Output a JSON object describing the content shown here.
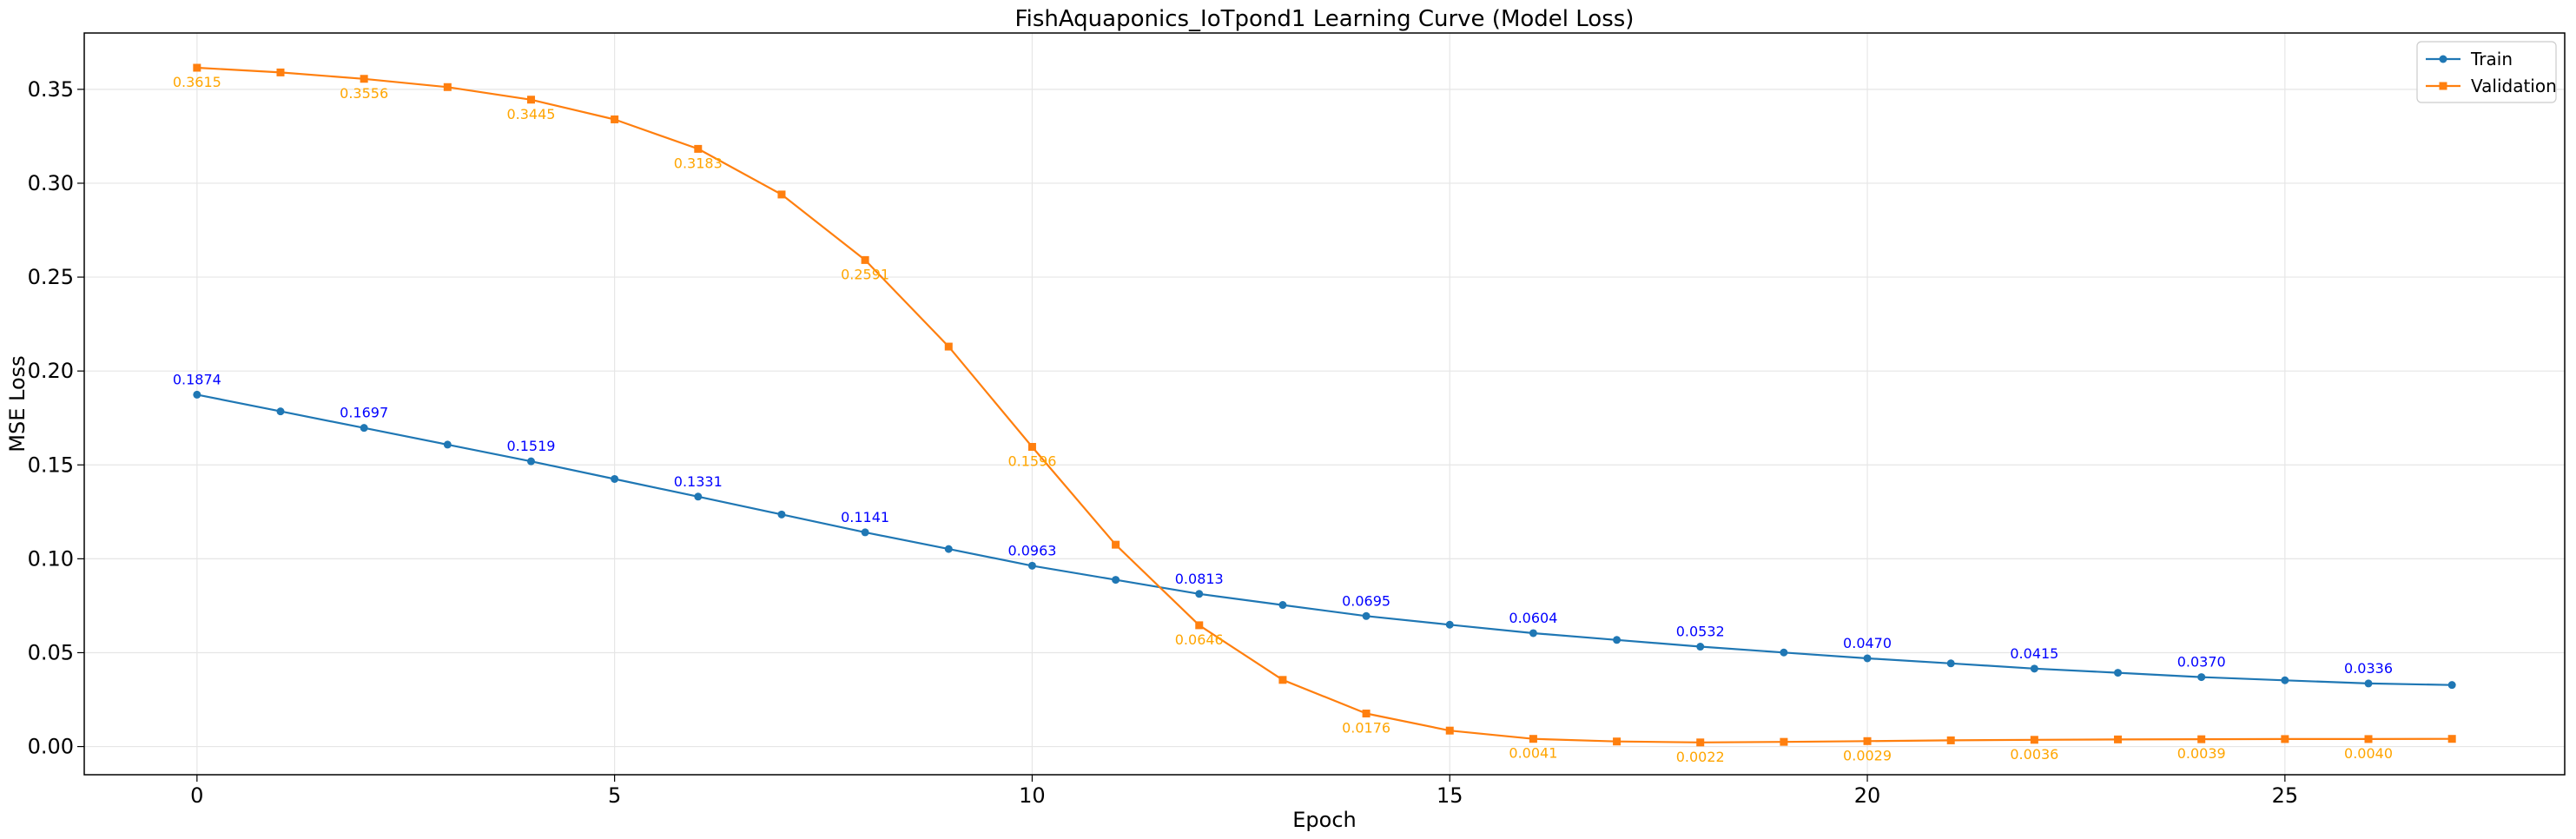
{
  "chart_data": {
    "type": "line",
    "title": "FishAquaponics_IoTpond1 Learning Curve (Model Loss)",
    "xlabel": "Epoch",
    "ylabel": "MSE Loss",
    "xlim": [
      -1.35,
      28.35
    ],
    "ylim": [
      -0.015,
      0.38
    ],
    "xticks": [
      0,
      5,
      10,
      15,
      20,
      25
    ],
    "xtick_labels": [
      "0",
      "5",
      "10",
      "15",
      "20",
      "25"
    ],
    "yticks": [
      0.0,
      0.05,
      0.1,
      0.15,
      0.2,
      0.25,
      0.3,
      0.35
    ],
    "ytick_labels": [
      "0.00",
      "0.05",
      "0.10",
      "0.15",
      "0.20",
      "0.25",
      "0.30",
      "0.35"
    ],
    "grid": true,
    "legend_position": "top-right",
    "x": [
      0,
      1,
      2,
      3,
      4,
      5,
      6,
      7,
      8,
      9,
      10,
      11,
      12,
      13,
      14,
      15,
      16,
      17,
      18,
      19,
      20,
      21,
      22,
      23,
      24,
      25,
      26,
      27
    ],
    "series": [
      {
        "name": "Train",
        "color": "#1f77b4",
        "label_color": "#0000ff",
        "marker": "circle",
        "values": [
          0.1874,
          0.1785,
          0.1697,
          0.1608,
          0.1519,
          0.1425,
          0.1331,
          0.1236,
          0.1141,
          0.1052,
          0.0963,
          0.0888,
          0.0813,
          0.0754,
          0.0695,
          0.0649,
          0.0604,
          0.0568,
          0.0532,
          0.0501,
          0.047,
          0.0443,
          0.0415,
          0.0393,
          0.037,
          0.0353,
          0.0336,
          0.0328
        ],
        "annotations": [
          {
            "x": 0,
            "y": 0.1874,
            "text": "0.1874"
          },
          {
            "x": 2,
            "y": 0.1697,
            "text": "0.1697"
          },
          {
            "x": 4,
            "y": 0.1519,
            "text": "0.1519"
          },
          {
            "x": 6,
            "y": 0.1331,
            "text": "0.1331"
          },
          {
            "x": 8,
            "y": 0.1141,
            "text": "0.1141"
          },
          {
            "x": 10,
            "y": 0.0963,
            "text": "0.0963"
          },
          {
            "x": 12,
            "y": 0.0813,
            "text": "0.0813"
          },
          {
            "x": 14,
            "y": 0.0695,
            "text": "0.0695"
          },
          {
            "x": 16,
            "y": 0.0604,
            "text": "0.0604"
          },
          {
            "x": 18,
            "y": 0.0532,
            "text": "0.0532"
          },
          {
            "x": 20,
            "y": 0.047,
            "text": "0.0470"
          },
          {
            "x": 22,
            "y": 0.0415,
            "text": "0.0415"
          },
          {
            "x": 24,
            "y": 0.037,
            "text": "0.0370"
          },
          {
            "x": 26,
            "y": 0.0336,
            "text": "0.0336"
          }
        ]
      },
      {
        "name": "Validation",
        "color": "#ff7f0e",
        "label_color": "#ffa500",
        "marker": "square",
        "values": [
          0.3615,
          0.359,
          0.3556,
          0.3512,
          0.3445,
          0.334,
          0.3183,
          0.294,
          0.2591,
          0.213,
          0.1596,
          0.1075,
          0.0646,
          0.0355,
          0.0176,
          0.0085,
          0.0041,
          0.0027,
          0.0022,
          0.0025,
          0.0029,
          0.0033,
          0.0036,
          0.0038,
          0.0039,
          0.004,
          0.004,
          0.0041
        ],
        "annotations": [
          {
            "x": 0,
            "y": 0.3615,
            "text": "0.3615"
          },
          {
            "x": 2,
            "y": 0.3556,
            "text": "0.3556"
          },
          {
            "x": 4,
            "y": 0.3445,
            "text": "0.3445"
          },
          {
            "x": 6,
            "y": 0.3183,
            "text": "0.3183"
          },
          {
            "x": 8,
            "y": 0.2591,
            "text": "0.2591"
          },
          {
            "x": 10,
            "y": 0.1596,
            "text": "0.1596"
          },
          {
            "x": 12,
            "y": 0.0646,
            "text": "0.0646"
          },
          {
            "x": 14,
            "y": 0.0176,
            "text": "0.0176"
          },
          {
            "x": 16,
            "y": 0.0041,
            "text": "0.0041"
          },
          {
            "x": 18,
            "y": 0.0022,
            "text": "0.0022"
          },
          {
            "x": 20,
            "y": 0.0029,
            "text": "0.0029"
          },
          {
            "x": 22,
            "y": 0.0036,
            "text": "0.0036"
          },
          {
            "x": 24,
            "y": 0.0039,
            "text": "0.0039"
          },
          {
            "x": 26,
            "y": 0.004,
            "text": "0.0040"
          }
        ]
      }
    ]
  }
}
